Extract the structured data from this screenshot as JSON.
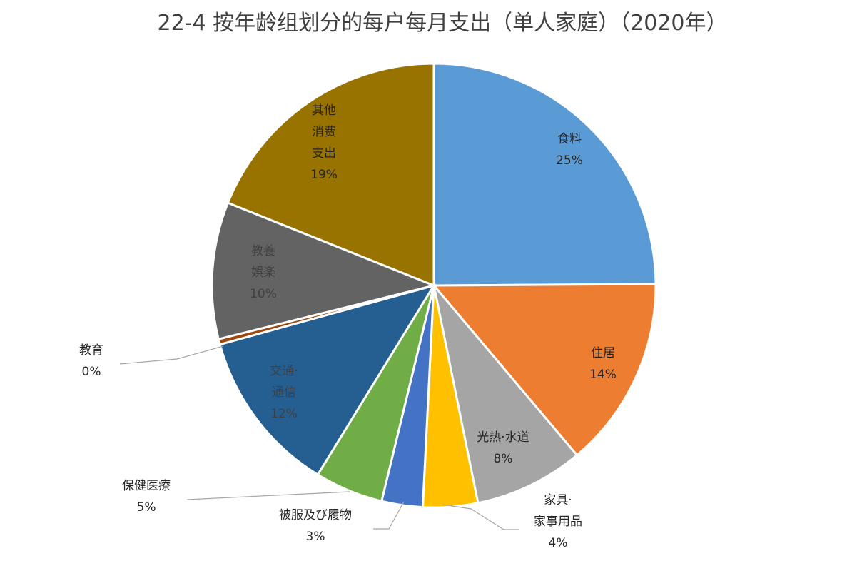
{
  "chart_data": {
    "type": "pie",
    "title": "22-4 按年龄组划分的每户每月支出（单人家庭）（2020年）",
    "slices": [
      {
        "label": [
          "食料"
        ],
        "pct": "25%",
        "value": 25,
        "color": "#5b9bd5",
        "label_color": "#262626"
      },
      {
        "label": [
          "住居"
        ],
        "pct": "14%",
        "value": 14,
        "color": "#ed7d31",
        "label_color": "#262626"
      },
      {
        "label": [
          "光热·水道"
        ],
        "pct": "8%",
        "value": 8,
        "color": "#a5a5a5",
        "label_color": "#262626"
      },
      {
        "label": [
          "家具·",
          "家事用品"
        ],
        "pct": "4%",
        "value": 4,
        "color": "#ffc000",
        "label_color": "#262626"
      },
      {
        "label": [
          "被服及び履物"
        ],
        "pct": "3%",
        "value": 3,
        "color": "#4472c4",
        "label_color": "#262626"
      },
      {
        "label": [
          "保健医療"
        ],
        "pct": "5%",
        "value": 5,
        "color": "#70ad47",
        "label_color": "#262626"
      },
      {
        "label": [
          "交通·",
          "通信"
        ],
        "pct": "12%",
        "value": 12,
        "color": "#255e91",
        "label_color": "#404040"
      },
      {
        "label": [
          "教育"
        ],
        "pct": "0%",
        "value": 0.4,
        "color": "#9e480e",
        "label_color": "#262626"
      },
      {
        "label": [
          "教養",
          "娯楽"
        ],
        "pct": "10%",
        "value": 10,
        "color": "#636363",
        "label_color": "#404040"
      },
      {
        "label": [
          "其他",
          "消费",
          "支出"
        ],
        "pct": "19%",
        "value": 19,
        "color": "#997300",
        "label_color": "#262626"
      }
    ]
  }
}
